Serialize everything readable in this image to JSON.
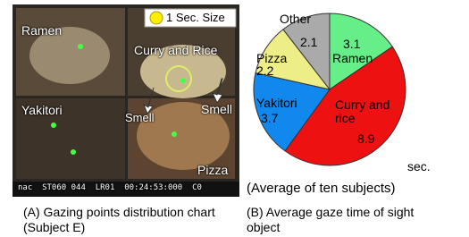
{
  "photo": {
    "labels": [
      "Ramen",
      "Curry and Rice",
      "Smell",
      "Smell",
      "Yakitori",
      "Pizza"
    ],
    "legend": "1 Sec. Size",
    "timestamp": "nac  ST060 044  LR01  00:24:53:000  C0"
  },
  "captions": [
    "(A) Gazing points distribution chart  (Subject E)",
    "(B) Average gaze time of sight object"
  ],
  "chart_data": {
    "type": "pie",
    "categories": [
      "Ramen",
      "Curry and rice",
      "Yakitori",
      "Pizza",
      "Other"
    ],
    "values": [
      3.1,
      8.9,
      3.7,
      2.2,
      2.1
    ],
    "colors": [
      "#66ee88",
      "#ee1111",
      "#1188ee",
      "#eeee88",
      "#aaaaaa"
    ],
    "unit": "sec.",
    "note": "(Average of ten subjects)"
  }
}
